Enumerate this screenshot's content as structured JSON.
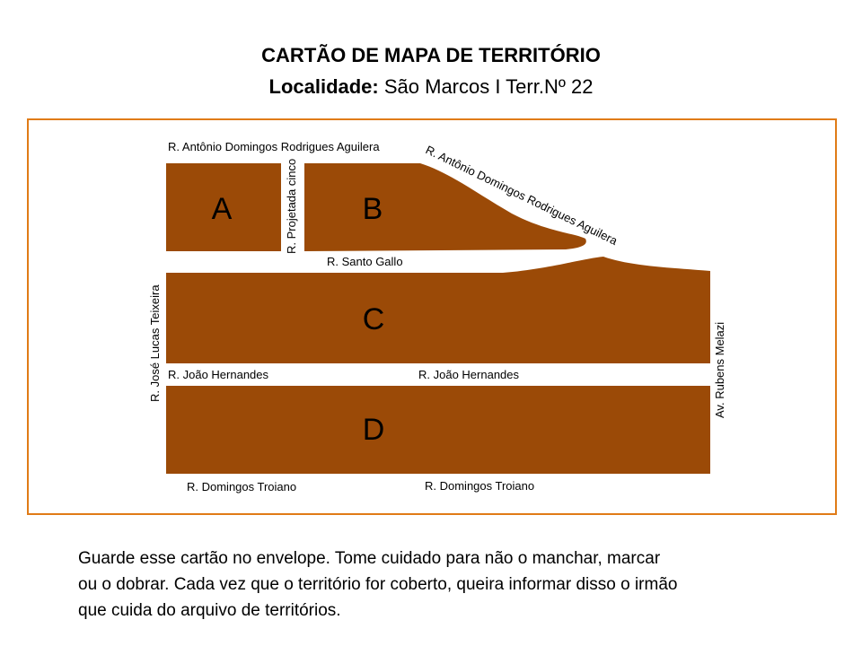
{
  "header": {
    "title": "CARTÃO DE MAPA DE TERRITÓRIO",
    "locality_label": "Localidade:",
    "locality_value": " São Marcos I Terr.Nº 22"
  },
  "map": {
    "block_fill": "#9B4A07",
    "frame_color": "#E07B17",
    "blocks": {
      "a": "A",
      "b": "B",
      "c": "C",
      "d": "D"
    },
    "streets": {
      "antonio_top": "R. Antônio  Domingos Rodrigues Aguilera",
      "antonio_diagonal": "R. Antônio Domingos Rodrigues Aguilera",
      "projetada": "R. Projetada cinco",
      "santo_gallo": "R. Santo Gallo",
      "jose_lucas": "R. José Lucas Teixeira",
      "joao_left": "R. João Hernandes",
      "joao_right": "R. João Hernandes",
      "rubens": "Av. Rubens Melazi",
      "troiano_left": "R. Domingos Troiano",
      "troiano_right": "R. Domingos Troiano"
    }
  },
  "instructions": {
    "line1": "Guarde esse cartão no envelope. Tome cuidado para não o manchar, marcar",
    "line2": "ou o dobrar. Cada vez que o território for coberto, queira informar disso o irmão",
    "line3": "que cuida do arquivo de territórios."
  }
}
